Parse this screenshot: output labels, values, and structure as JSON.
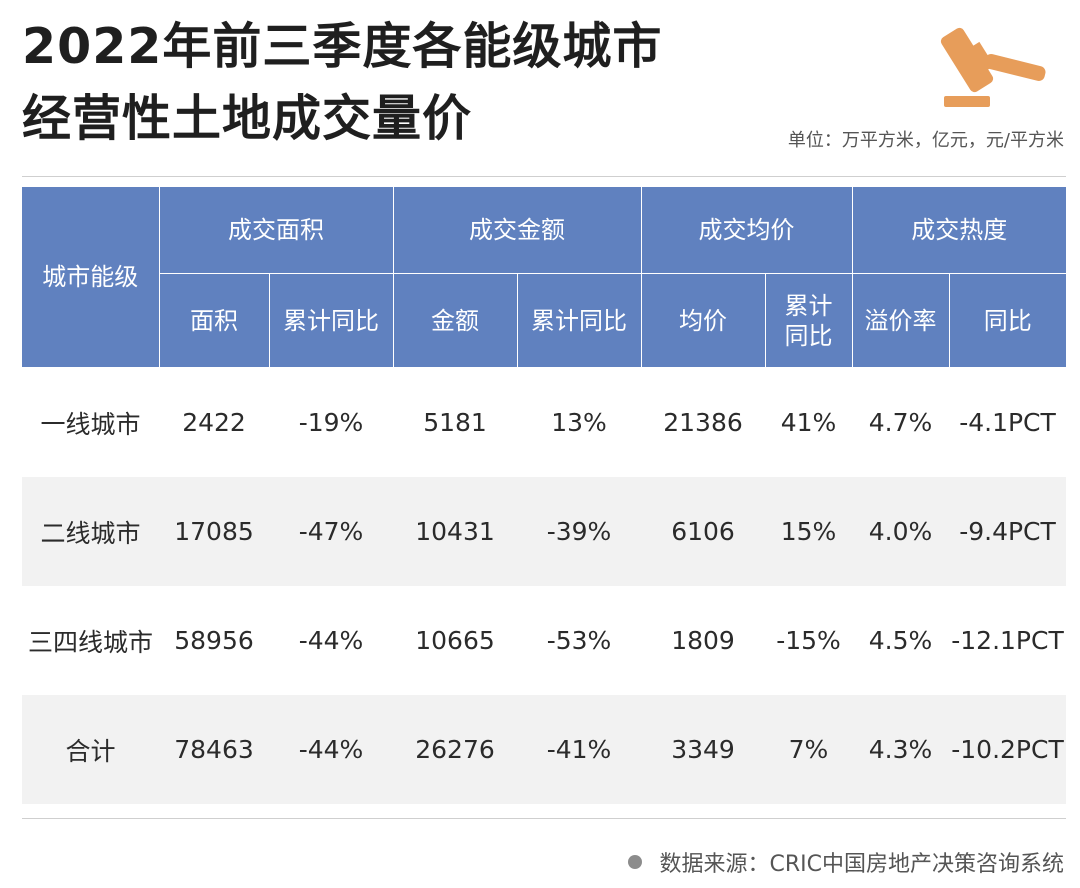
{
  "title_line1": "2022年前三季度各能级城市",
  "title_line2": "经营性土地成交量价",
  "unit": "单位：万平方米，亿元，元/平方米",
  "colors": {
    "header_bg": "#6081bf",
    "row_shade": "#f2f2f2",
    "logo_orange": "#e79d5a"
  },
  "logo_icon": "gavel-icon",
  "table": {
    "corner_header": "城市能级",
    "group_headers": [
      "成交面积",
      "成交金额",
      "成交均价",
      "成交热度"
    ],
    "sub_headers": [
      "面积",
      "累计同比",
      "金额",
      "累计同比",
      "均价",
      "累计同比",
      "溢价率",
      "同比"
    ],
    "rows": [
      {
        "city": "一线城市",
        "cells": [
          "2422",
          "-19%",
          "5181",
          "13%",
          "21386",
          "41%",
          "4.7%",
          "-4.1PCT"
        ]
      },
      {
        "city": "二线城市",
        "cells": [
          "17085",
          "-47%",
          "10431",
          "-39%",
          "6106",
          "15%",
          "4.0%",
          "-9.4PCT"
        ]
      },
      {
        "city": "三四线城市",
        "cells": [
          "58956",
          "-44%",
          "10665",
          "-53%",
          "1809",
          "-15%",
          "4.5%",
          "-12.1PCT"
        ]
      },
      {
        "city": "合计",
        "cells": [
          "78463",
          "-44%",
          "26276",
          "-41%",
          "3349",
          "7%",
          "4.3%",
          "-10.2PCT"
        ]
      }
    ]
  },
  "source": "数据来源：CRIC中国房地产决策咨询系统"
}
